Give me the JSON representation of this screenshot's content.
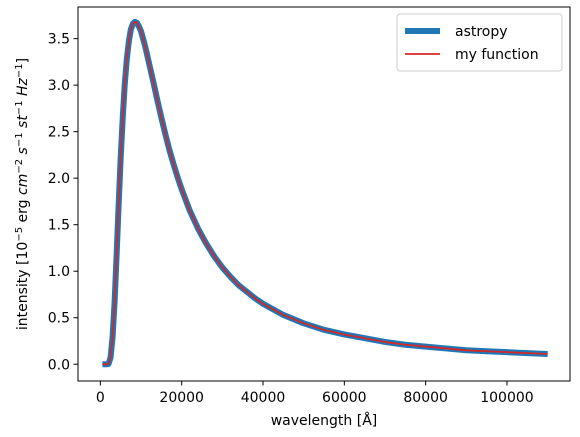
{
  "chart_data": {
    "type": "line",
    "xlabel": "wavelength [Å]",
    "ylabel": {
      "parts": [
        {
          "text": "intensity [10",
          "style": "normal",
          "shift": "none"
        },
        {
          "text": "−5",
          "style": "normal",
          "shift": "super"
        },
        {
          "text": " erg ",
          "style": "normal",
          "shift": "none"
        },
        {
          "text": "cm",
          "style": "italic",
          "shift": "none"
        },
        {
          "text": "−2",
          "style": "normal",
          "shift": "super"
        },
        {
          "text": " s",
          "style": "italic",
          "shift": "none"
        },
        {
          "text": "−1",
          "style": "normal",
          "shift": "super"
        },
        {
          "text": " st",
          "style": "italic",
          "shift": "none"
        },
        {
          "text": "−1",
          "style": "normal",
          "shift": "super"
        },
        {
          "text": " Hz",
          "style": "italic",
          "shift": "none"
        },
        {
          "text": "−1",
          "style": "normal",
          "shift": "super"
        },
        {
          "text": "]",
          "style": "normal",
          "shift": "none"
        }
      ]
    },
    "xlim": [
      -5500,
      115500
    ],
    "ylim": [
      -0.18,
      3.84
    ],
    "xticks": [
      0,
      20000,
      40000,
      60000,
      80000,
      100000
    ],
    "xtick_labels": [
      "0",
      "20000",
      "40000",
      "60000",
      "80000",
      "100000"
    ],
    "yticks": [
      0.0,
      0.5,
      1.0,
      1.5,
      2.0,
      2.5,
      3.0,
      3.5
    ],
    "ytick_labels": [
      "0.0",
      "0.5",
      "1.0",
      "1.5",
      "2.0",
      "2.5",
      "3.0",
      "3.5"
    ],
    "grid": false,
    "legend_position": "top-right",
    "series": [
      {
        "name": "astropy",
        "color": "#1f77b4",
        "style": "thick",
        "x": [
          500,
          1000,
          1500,
          2000,
          2500,
          3000,
          3500,
          4000,
          4500,
          5000,
          5500,
          6000,
          6500,
          7000,
          7500,
          8000,
          8500,
          9000,
          9500,
          10000,
          11000,
          12000,
          13000,
          14000,
          15000,
          16000,
          17000,
          18000,
          19000,
          20000,
          22000,
          24000,
          26000,
          28000,
          30000,
          32000,
          34000,
          36000,
          38000,
          40000,
          45000,
          50000,
          55000,
          60000,
          65000,
          70000,
          75000,
          80000,
          85000,
          90000,
          95000,
          100000,
          105000,
          110000
        ],
        "y": [
          0.0,
          0.0,
          0.0,
          0.003,
          0.07,
          0.29,
          0.67,
          1.18,
          1.72,
          2.22,
          2.65,
          3.01,
          3.28,
          3.47,
          3.6,
          3.66,
          3.68,
          3.67,
          3.63,
          3.58,
          3.42,
          3.23,
          3.04,
          2.84,
          2.65,
          2.47,
          2.3,
          2.15,
          2.01,
          1.88,
          1.65,
          1.46,
          1.3,
          1.16,
          1.04,
          0.94,
          0.85,
          0.78,
          0.71,
          0.65,
          0.53,
          0.44,
          0.37,
          0.32,
          0.28,
          0.24,
          0.21,
          0.19,
          0.17,
          0.15,
          0.14,
          0.13,
          0.12,
          0.11
        ]
      },
      {
        "name": "my function",
        "color": "#d62728",
        "style": "thin",
        "x": [
          500,
          1000,
          1500,
          2000,
          2500,
          3000,
          3500,
          4000,
          4500,
          5000,
          5500,
          6000,
          6500,
          7000,
          7500,
          8000,
          8500,
          9000,
          9500,
          10000,
          11000,
          12000,
          13000,
          14000,
          15000,
          16000,
          17000,
          18000,
          19000,
          20000,
          22000,
          24000,
          26000,
          28000,
          30000,
          32000,
          34000,
          36000,
          38000,
          40000,
          45000,
          50000,
          55000,
          60000,
          65000,
          70000,
          75000,
          80000,
          85000,
          90000,
          95000,
          100000,
          105000,
          110000
        ],
        "y": [
          0.0,
          0.0,
          0.0,
          0.003,
          0.07,
          0.29,
          0.67,
          1.18,
          1.72,
          2.22,
          2.65,
          3.01,
          3.28,
          3.47,
          3.6,
          3.66,
          3.68,
          3.67,
          3.63,
          3.58,
          3.42,
          3.23,
          3.04,
          2.84,
          2.65,
          2.47,
          2.3,
          2.15,
          2.01,
          1.88,
          1.65,
          1.46,
          1.3,
          1.16,
          1.04,
          0.94,
          0.85,
          0.78,
          0.71,
          0.65,
          0.53,
          0.44,
          0.37,
          0.32,
          0.28,
          0.24,
          0.21,
          0.19,
          0.17,
          0.15,
          0.14,
          0.13,
          0.12,
          0.11
        ]
      }
    ]
  }
}
